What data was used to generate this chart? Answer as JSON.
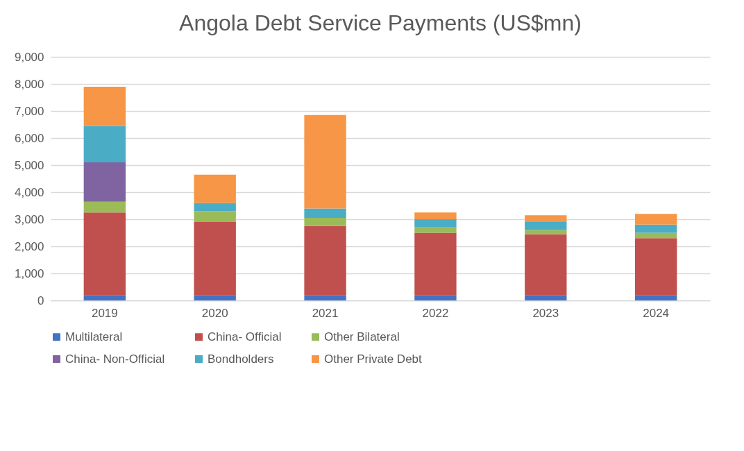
{
  "chart_data": {
    "type": "bar",
    "title": "Angola Debt Service Payments (US$mn)",
    "stacked": true,
    "categories": [
      "2019",
      "2020",
      "2021",
      "2022",
      "2023",
      "2024"
    ],
    "series": [
      {
        "name": "Multilateral",
        "color": "#4472c4",
        "values": [
          200,
          200,
          200,
          200,
          200,
          200
        ]
      },
      {
        "name": "China- Official",
        "color": "#c0504d",
        "values": [
          3050,
          2700,
          2550,
          2300,
          2250,
          2100
        ]
      },
      {
        "name": "Other Bilateral",
        "color": "#9bbb59",
        "values": [
          400,
          400,
          300,
          200,
          150,
          200
        ]
      },
      {
        "name": "China- Non-Official",
        "color": "#8064a2",
        "values": [
          1450,
          0,
          0,
          0,
          0,
          0
        ]
      },
      {
        "name": "Bondholders",
        "color": "#4bacc6",
        "values": [
          1350,
          300,
          350,
          300,
          300,
          300
        ]
      },
      {
        "name": "Other Private Debt",
        "color": "#f79646",
        "values": [
          1450,
          1050,
          3450,
          250,
          250,
          400
        ]
      }
    ],
    "ylim": [
      0,
      9000
    ],
    "yticks": [
      0,
      {
        "value": 1000,
        "label": "1,000"
      },
      {
        "value": 2000,
        "label": "2,000"
      },
      {
        "value": 3000,
        "label": "3,000"
      },
      {
        "value": 4000,
        "label": "4,000"
      },
      {
        "value": 5000,
        "label": "5,000"
      },
      {
        "value": 6000,
        "label": "6,000"
      },
      {
        "value": 7000,
        "label": "7,000"
      },
      {
        "value": 8000,
        "label": "8,000"
      },
      {
        "value": 9000,
        "label": "9,000"
      }
    ],
    "grid": "y",
    "legend": "bottom"
  }
}
